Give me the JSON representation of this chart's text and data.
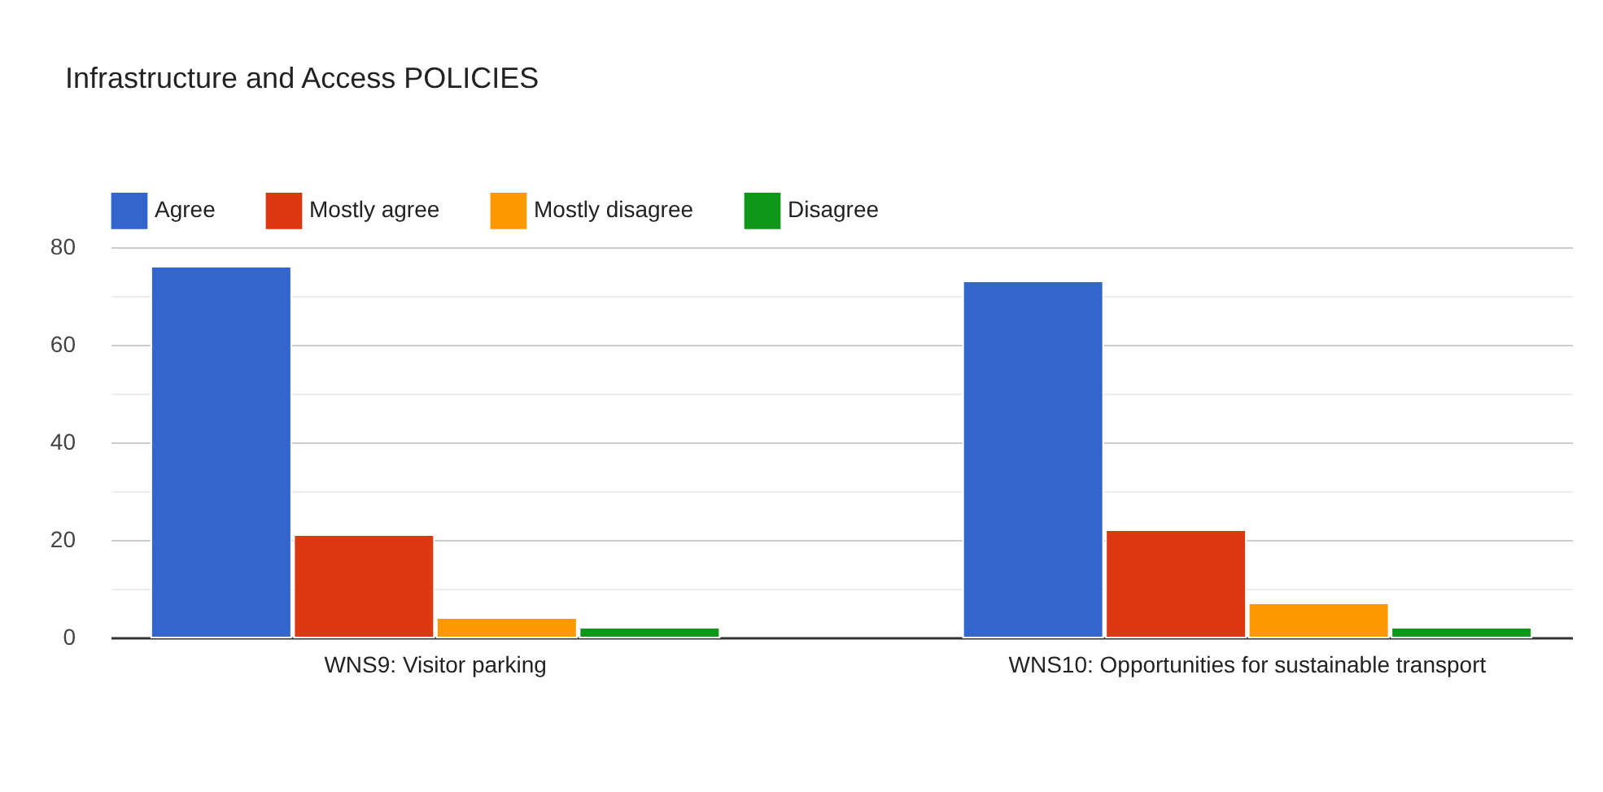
{
  "chart_data": {
    "type": "bar",
    "title": "Infrastructure and Access POLICIES",
    "categories": [
      "WNS9: Visitor parking",
      "WNS10: Opportunities for sustainable transport"
    ],
    "series": [
      {
        "name": "Agree",
        "color": "#3366cc",
        "values": [
          76,
          73
        ]
      },
      {
        "name": "Mostly agree",
        "color": "#dc3912",
        "values": [
          21,
          22
        ]
      },
      {
        "name": "Mostly disagree",
        "color": "#ff9900",
        "values": [
          4,
          7
        ]
      },
      {
        "name": "Disagree",
        "color": "#109618",
        "values": [
          2,
          2
        ]
      }
    ],
    "ylim": [
      0,
      80
    ],
    "yticks": [
      0,
      {
        "value": 10,
        "label": null
      },
      20,
      {
        "value": 30,
        "label": null
      },
      40,
      {
        "value": 50,
        "label": null
      },
      60,
      {
        "value": 70,
        "label": null
      },
      80
    ],
    "grid": true,
    "legend": "top left"
  }
}
